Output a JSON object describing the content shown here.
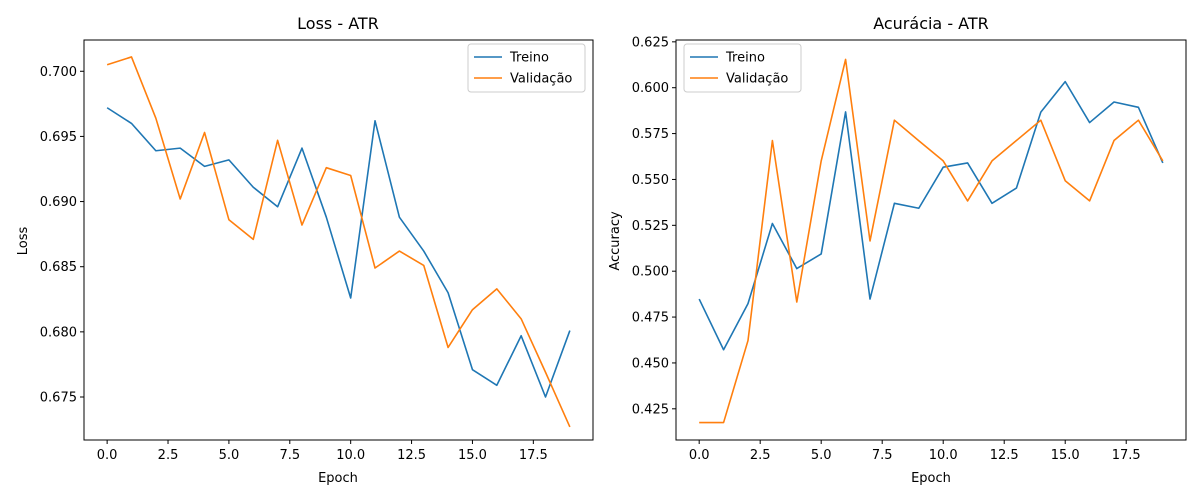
{
  "chart_data": [
    {
      "type": "line",
      "title": "Loss - ATR",
      "xlabel": "Epoch",
      "ylabel": "Loss",
      "xlim": [
        -0.95,
        19.95
      ],
      "ylim": [
        0.6717,
        0.7024
      ],
      "xticks": [
        0,
        2.5,
        5,
        7.5,
        10,
        12.5,
        15,
        17.5
      ],
      "xtick_labels": [
        "0.0",
        "2.5",
        "5.0",
        "7.5",
        "10.0",
        "12.5",
        "15.0",
        "17.5"
      ],
      "yticks": [
        0.675,
        0.68,
        0.685,
        0.69,
        0.695,
        0.7
      ],
      "ytick_labels": [
        "0.675",
        "0.680",
        "0.685",
        "0.690",
        "0.695",
        "0.700"
      ],
      "grid": false,
      "legend": "upper right",
      "x": [
        0,
        1,
        2,
        3,
        4,
        5,
        6,
        7,
        8,
        9,
        10,
        11,
        12,
        13,
        14,
        15,
        16,
        17,
        18,
        19
      ],
      "series": [
        {
          "name": "Treino",
          "color": "#1f77b4",
          "values": [
            0.6972,
            0.696,
            0.6939,
            0.6941,
            0.6927,
            0.6932,
            0.6911,
            0.6896,
            0.6941,
            0.6888,
            0.6826,
            0.6962,
            0.6888,
            0.6862,
            0.683,
            0.6771,
            0.6759,
            0.6797,
            0.675,
            0.6801
          ]
        },
        {
          "name": "Validação",
          "color": "#ff7f0e",
          "values": [
            0.7005,
            0.7011,
            0.6964,
            0.6902,
            0.6953,
            0.6886,
            0.6871,
            0.6947,
            0.6882,
            0.6926,
            0.692,
            0.6849,
            0.6862,
            0.6851,
            0.6788,
            0.6817,
            0.6833,
            0.681,
            0.6769,
            0.6727
          ]
        }
      ]
    },
    {
      "type": "line",
      "title": "Acurácia - ATR",
      "xlabel": "Epoch",
      "ylabel": "Accuracy",
      "xlim": [
        -0.95,
        19.95
      ],
      "ylim": [
        0.408,
        0.626
      ],
      "xticks": [
        0,
        2.5,
        5,
        7.5,
        10,
        12.5,
        15,
        17.5
      ],
      "xtick_labels": [
        "0.0",
        "2.5",
        "5.0",
        "7.5",
        "10.0",
        "12.5",
        "15.0",
        "17.5"
      ],
      "yticks": [
        0.425,
        0.45,
        0.475,
        0.5,
        0.525,
        0.55,
        0.575,
        0.6,
        0.625
      ],
      "ytick_labels": [
        "0.425",
        "0.450",
        "0.475",
        "0.500",
        "0.525",
        "0.550",
        "0.575",
        "0.600",
        "0.625"
      ],
      "grid": false,
      "legend": "upper left",
      "x": [
        0,
        1,
        2,
        3,
        4,
        5,
        6,
        7,
        8,
        9,
        10,
        11,
        12,
        13,
        14,
        15,
        16,
        17,
        18,
        19
      ],
      "series": [
        {
          "name": "Treino",
          "color": "#1f77b4",
          "values": [
            0.4848,
            0.4572,
            0.4823,
            0.526,
            0.5014,
            0.5094,
            0.5868,
            0.4848,
            0.537,
            0.5343,
            0.5567,
            0.559,
            0.537,
            0.5453,
            0.5867,
            0.6033,
            0.581,
            0.5922,
            0.5893,
            0.559
          ]
        },
        {
          "name": "Validação",
          "color": "#ff7f0e",
          "values": [
            0.4175,
            0.4175,
            0.4622,
            0.5712,
            0.4832,
            0.5601,
            0.6154,
            0.5165,
            0.5823,
            0.5711,
            0.5601,
            0.5383,
            0.5601,
            0.5712,
            0.5823,
            0.5493,
            0.5383,
            0.5712,
            0.5823,
            0.5601
          ]
        }
      ]
    }
  ]
}
